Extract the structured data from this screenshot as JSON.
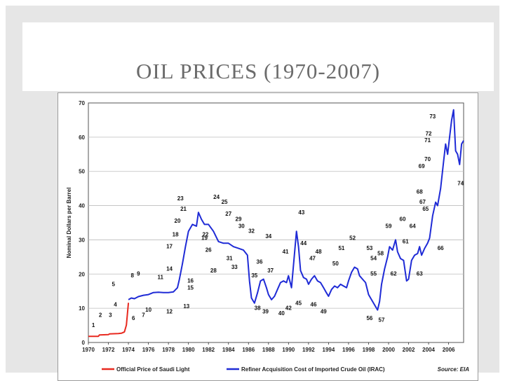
{
  "slide": {
    "title": "OIL PRICES (1970-2007)"
  },
  "chart_data": {
    "type": "line",
    "title": "OIL PRICES (1970-2007)",
    "xlabel": "",
    "ylabel": "Nominal Dollars per Barrel",
    "xlim": [
      1970,
      2007.5
    ],
    "ylim": [
      0,
      70
    ],
    "x_ticks": [
      "1970",
      "1972",
      "1974",
      "1976",
      "1978",
      "1980",
      "1982",
      "1984",
      "1986",
      "1988",
      "1990",
      "1992",
      "1994",
      "1996",
      "1998",
      "2000",
      "2002",
      "2004",
      "2006"
    ],
    "y_ticks": [
      "0",
      "10",
      "20",
      "30",
      "40",
      "50",
      "60",
      "70"
    ],
    "grid": true,
    "source": "Source: EIA",
    "series": [
      {
        "name": "Official Price of Saudi Light",
        "color": "#e8291f",
        "x": [
          1970,
          1971.0,
          1971.1,
          1972.0,
          1972.1,
          1973.0,
          1973.3,
          1973.6,
          1973.8,
          1974.0
        ],
        "y": [
          1.8,
          1.8,
          2.2,
          2.3,
          2.5,
          2.6,
          2.7,
          3.1,
          5.1,
          11.6
        ]
      },
      {
        "name": "Refiner Acquisition Cost of Imported Crude Oil (IRAC)",
        "color": "#1f2bd6",
        "x": [
          1974.0,
          1974.3,
          1974.6,
          1975.0,
          1975.5,
          1976.0,
          1976.5,
          1977.0,
          1977.5,
          1978.0,
          1978.5,
          1978.9,
          1979.1,
          1979.4,
          1979.7,
          1980.0,
          1980.4,
          1980.8,
          1981.0,
          1981.3,
          1981.6,
          1982.0,
          1982.5,
          1983.0,
          1983.5,
          1984.0,
          1984.5,
          1985.0,
          1985.5,
          1985.9,
          1986.1,
          1986.3,
          1986.6,
          1986.9,
          1987.2,
          1987.5,
          1987.8,
          1988.0,
          1988.3,
          1988.6,
          1988.9,
          1989.2,
          1989.5,
          1989.8,
          1990.0,
          1990.3,
          1990.6,
          1990.8,
          1991.0,
          1991.2,
          1991.5,
          1991.8,
          1992.0,
          1992.3,
          1992.6,
          1992.9,
          1993.2,
          1993.5,
          1993.8,
          1994.0,
          1994.3,
          1994.6,
          1994.9,
          1995.2,
          1995.5,
          1995.8,
          1996.0,
          1996.3,
          1996.6,
          1996.9,
          1997.1,
          1997.4,
          1997.7,
          1998.0,
          1998.3,
          1998.6,
          1998.9,
          1999.1,
          1999.3,
          1999.6,
          1999.9,
          2000.1,
          2000.4,
          2000.7,
          2000.9,
          2001.2,
          2001.5,
          2001.8,
          2002.0,
          2002.3,
          2002.6,
          2002.9,
          2003.1,
          2003.3,
          2003.6,
          2003.9,
          2004.1,
          2004.4,
          2004.7,
          2004.9,
          2005.2,
          2005.5,
          2005.7,
          2005.9,
          2006.1,
          2006.3,
          2006.5,
          2006.7,
          2006.9,
          2007.1,
          2007.3,
          2007.5
        ],
        "y": [
          12.5,
          13.0,
          12.8,
          13.4,
          13.8,
          14.0,
          14.6,
          14.7,
          14.6,
          14.6,
          14.8,
          16.0,
          18.5,
          23.0,
          28.0,
          32.5,
          34.5,
          34.0,
          38.0,
          36.0,
          34.5,
          34.5,
          32.5,
          29.5,
          29.0,
          29.0,
          28.0,
          27.5,
          27.0,
          25.5,
          18.0,
          13.0,
          11.5,
          14.5,
          18.0,
          18.5,
          16.0,
          14.0,
          12.5,
          13.5,
          15.5,
          17.5,
          18.0,
          17.5,
          19.5,
          16.0,
          26.0,
          32.5,
          28.0,
          21.0,
          19.0,
          18.5,
          17.0,
          18.5,
          19.5,
          18.0,
          17.5,
          16.0,
          14.5,
          13.5,
          15.5,
          16.5,
          16.0,
          17.0,
          16.5,
          16.0,
          18.0,
          20.5,
          22.0,
          21.5,
          19.5,
          18.5,
          17.5,
          14.0,
          12.5,
          11.0,
          9.5,
          12.0,
          17.0,
          21.5,
          25.0,
          28.0,
          27.0,
          30.0,
          26.5,
          24.5,
          24.0,
          18.0,
          18.5,
          24.0,
          25.5,
          26.0,
          28.0,
          25.5,
          27.5,
          29.0,
          30.5,
          37.0,
          41.0,
          40.0,
          45.0,
          53.0,
          58.0,
          55.0,
          60.0,
          65.0,
          68.0,
          56.0,
          55.0,
          52.0,
          58.0,
          59.0
        ]
      }
    ],
    "annotations": [
      {
        "label": "1",
        "x": 1970.5,
        "y": 4.5
      },
      {
        "label": "2",
        "x": 1971.2,
        "y": 7.5
      },
      {
        "label": "3",
        "x": 1972.2,
        "y": 7.5
      },
      {
        "label": "4",
        "x": 1972.7,
        "y": 10.5
      },
      {
        "label": "5",
        "x": 1972.5,
        "y": 16.5
      },
      {
        "label": "6",
        "x": 1974.5,
        "y": 6.5
      },
      {
        "label": "7",
        "x": 1975.5,
        "y": 7.5
      },
      {
        "label": "8",
        "x": 1974.4,
        "y": 19.0
      },
      {
        "label": "9",
        "x": 1975.0,
        "y": 19.5
      },
      {
        "label": "10",
        "x": 1976.0,
        "y": 9.0
      },
      {
        "label": "11",
        "x": 1977.2,
        "y": 18.5
      },
      {
        "label": "12",
        "x": 1978.1,
        "y": 8.5
      },
      {
        "label": "13",
        "x": 1979.8,
        "y": 10.0
      },
      {
        "label": "14",
        "x": 1978.1,
        "y": 21.0
      },
      {
        "label": "15",
        "x": 1980.2,
        "y": 15.5
      },
      {
        "label": "16",
        "x": 1980.2,
        "y": 17.5
      },
      {
        "label": "17",
        "x": 1978.1,
        "y": 27.5
      },
      {
        "label": "18",
        "x": 1978.7,
        "y": 31.0
      },
      {
        "label": "19",
        "x": 1981.6,
        "y": 30.0
      },
      {
        "label": "20",
        "x": 1978.9,
        "y": 35.0
      },
      {
        "label": "21",
        "x": 1979.5,
        "y": 38.5
      },
      {
        "label": "22",
        "x": 1981.7,
        "y": 31.0
      },
      {
        "label": "23",
        "x": 1979.2,
        "y": 41.5
      },
      {
        "label": "24",
        "x": 1982.8,
        "y": 42.0
      },
      {
        "label": "25",
        "x": 1983.6,
        "y": 40.5
      },
      {
        "label": "26",
        "x": 1982.0,
        "y": 26.5
      },
      {
        "label": "27",
        "x": 1984.0,
        "y": 37.0
      },
      {
        "label": "28",
        "x": 1982.5,
        "y": 20.5
      },
      {
        "label": "29",
        "x": 1985.0,
        "y": 35.5
      },
      {
        "label": "30",
        "x": 1985.3,
        "y": 33.5
      },
      {
        "label": "31",
        "x": 1984.1,
        "y": 24.0
      },
      {
        "label": "32",
        "x": 1986.3,
        "y": 32.0
      },
      {
        "label": "33",
        "x": 1984.6,
        "y": 21.5
      },
      {
        "label": "34",
        "x": 1988.0,
        "y": 30.5
      },
      {
        "label": "35",
        "x": 1986.6,
        "y": 19.0
      },
      {
        "label": "36",
        "x": 1987.1,
        "y": 23.0
      },
      {
        "label": "37",
        "x": 1988.2,
        "y": 20.5
      },
      {
        "label": "38",
        "x": 1986.9,
        "y": 9.5
      },
      {
        "label": "39",
        "x": 1987.7,
        "y": 8.5
      },
      {
        "label": "40",
        "x": 1989.3,
        "y": 8.0
      },
      {
        "label": "41",
        "x": 1989.7,
        "y": 26.0
      },
      {
        "label": "42",
        "x": 1990.0,
        "y": 9.5
      },
      {
        "label": "43",
        "x": 1991.3,
        "y": 37.5
      },
      {
        "label": "44",
        "x": 1991.5,
        "y": 28.5
      },
      {
        "label": "45",
        "x": 1991.0,
        "y": 11.0
      },
      {
        "label": "46",
        "x": 1992.5,
        "y": 10.5
      },
      {
        "label": "47",
        "x": 1992.4,
        "y": 24.0
      },
      {
        "label": "48",
        "x": 1993.0,
        "y": 26.0
      },
      {
        "label": "49",
        "x": 1993.5,
        "y": 8.5
      },
      {
        "label": "50",
        "x": 1994.7,
        "y": 22.5
      },
      {
        "label": "51",
        "x": 1995.3,
        "y": 27.0
      },
      {
        "label": "52",
        "x": 1996.4,
        "y": 30.0
      },
      {
        "label": "53",
        "x": 1998.1,
        "y": 27.0
      },
      {
        "label": "54",
        "x": 1998.5,
        "y": 24.0
      },
      {
        "label": "55",
        "x": 1998.5,
        "y": 19.5
      },
      {
        "label": "56",
        "x": 1998.1,
        "y": 6.5
      },
      {
        "label": "57",
        "x": 1999.3,
        "y": 6.0
      },
      {
        "label": "58",
        "x": 1999.2,
        "y": 25.5
      },
      {
        "label": "59",
        "x": 2000.0,
        "y": 33.5
      },
      {
        "label": "60",
        "x": 2001.4,
        "y": 35.5
      },
      {
        "label": "61",
        "x": 2001.7,
        "y": 29.0
      },
      {
        "label": "62",
        "x": 2000.5,
        "y": 19.5
      },
      {
        "label": "63",
        "x": 2003.1,
        "y": 19.5
      },
      {
        "label": "64",
        "x": 2002.4,
        "y": 33.5
      },
      {
        "label": "65",
        "x": 2003.7,
        "y": 38.5
      },
      {
        "label": "66",
        "x": 2005.2,
        "y": 27.0
      },
      {
        "label": "67",
        "x": 2003.4,
        "y": 40.5
      },
      {
        "label": "68",
        "x": 2003.1,
        "y": 43.5
      },
      {
        "label": "69",
        "x": 2003.3,
        "y": 51.0
      },
      {
        "label": "70",
        "x": 2003.9,
        "y": 53.0
      },
      {
        "label": "71",
        "x": 2003.9,
        "y": 58.5
      },
      {
        "label": "72",
        "x": 2004.0,
        "y": 60.5
      },
      {
        "label": "73",
        "x": 2004.4,
        "y": 65.5
      },
      {
        "label": "74",
        "x": 2007.2,
        "y": 46.0
      }
    ]
  }
}
